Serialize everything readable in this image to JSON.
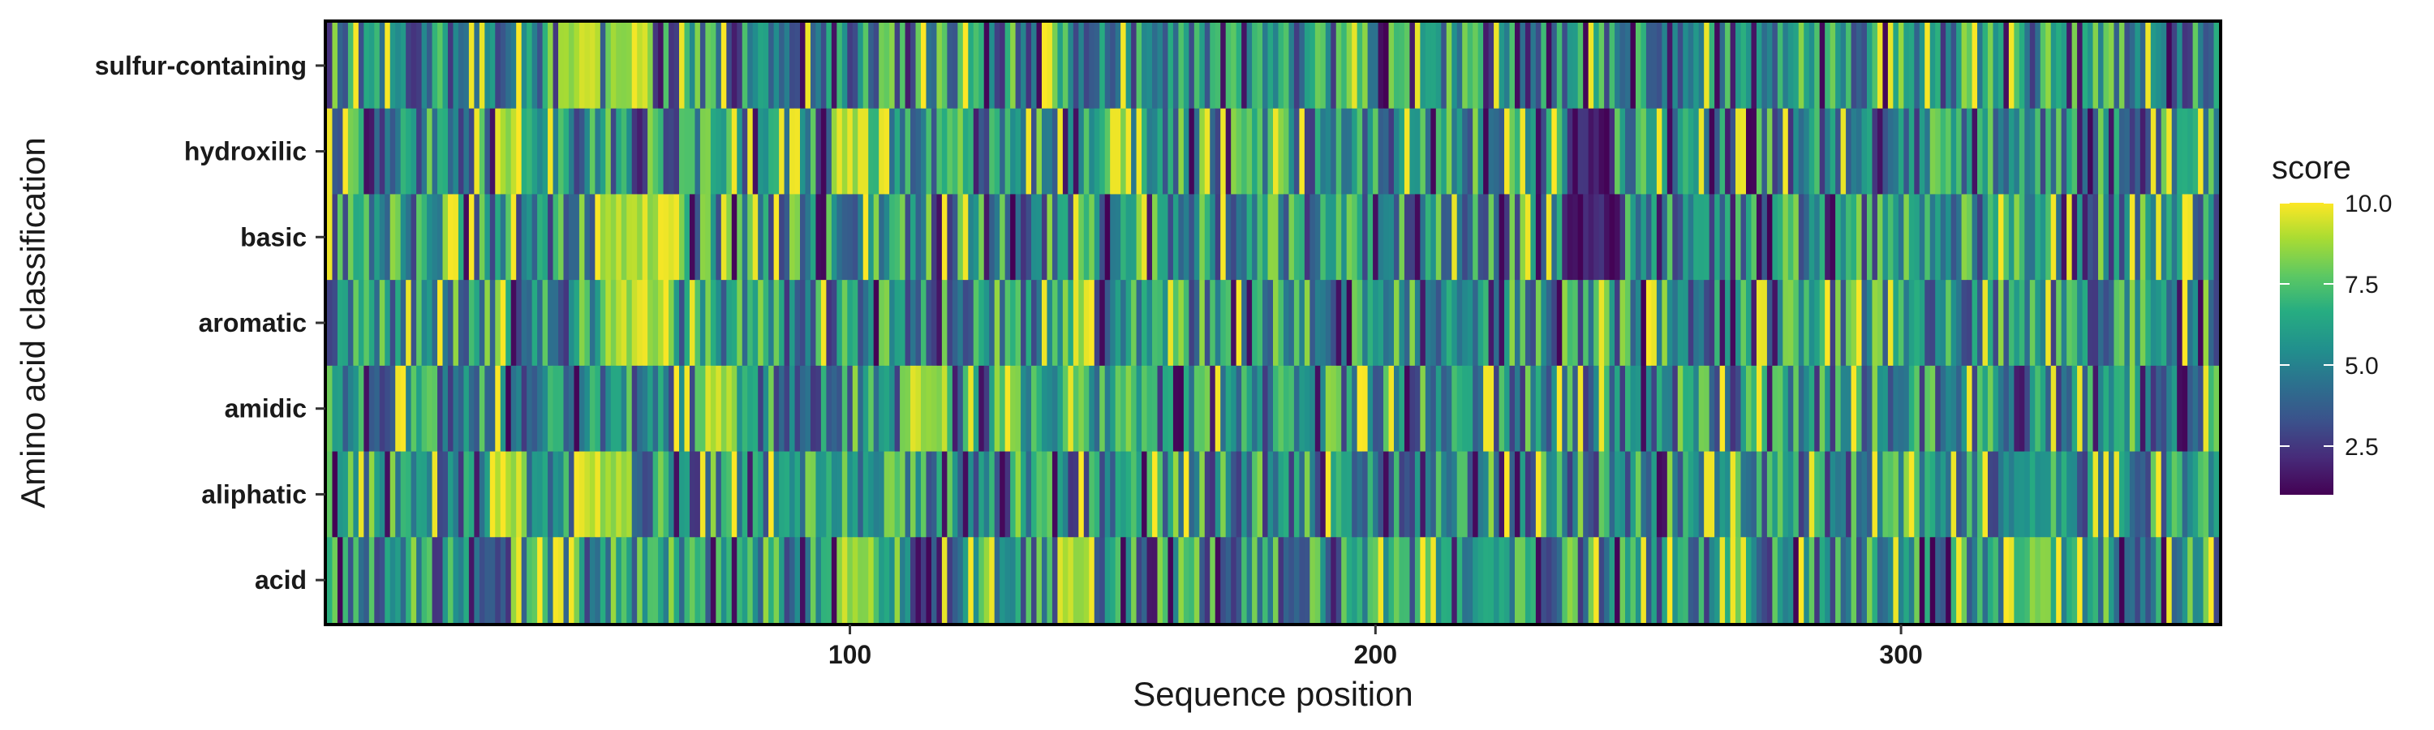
{
  "chart_data": {
    "type": "heatmap",
    "title": "",
    "xlabel": "Sequence position",
    "ylabel": "Amino acid classification",
    "rows": [
      "sulfur-containing",
      "hydroxilic",
      "basic",
      "aromatic",
      "amidic",
      "aliphatic",
      "acid"
    ],
    "xlim": [
      1,
      360
    ],
    "x_ticks": [
      100,
      200,
      300
    ],
    "x_tick_labels": [
      "100",
      "200",
      "300"
    ],
    "grid": false,
    "colorscale": "viridis",
    "colors": [
      "#440154",
      "#3b528b",
      "#21908c",
      "#5dc963",
      "#fde725"
    ],
    "legend": {
      "title": "score",
      "position": "right",
      "range": [
        1.0,
        10.0
      ],
      "ticks": [
        2.5,
        5.0,
        7.5,
        10.0
      ],
      "tick_labels": [
        "2.5",
        "5.0",
        "7.5",
        "10.0"
      ]
    },
    "values_note_free": true,
    "profiles": [
      {
        "row": "sulfur-containing",
        "seed": 11,
        "hot_spans": [
          [
            45,
            52
          ],
          [
            55,
            62
          ]
        ],
        "cold_spans": []
      },
      {
        "row": "hydroxilic",
        "seed": 23,
        "hot_spans": [
          [
            33,
            36
          ],
          [
            97,
            100
          ]
        ],
        "cold_spans": [
          [
            237,
            245
          ]
        ]
      },
      {
        "row": "basic",
        "seed": 37,
        "hot_spans": [
          [
            53,
            68
          ]
        ],
        "cold_spans": [
          [
            236,
            246
          ]
        ]
      },
      {
        "row": "aromatic",
        "seed": 41,
        "hot_spans": [
          [
            54,
            66
          ]
        ],
        "cold_spans": []
      },
      {
        "row": "amidic",
        "seed": 53,
        "hot_spans": [
          [
            73,
            78
          ],
          [
            112,
            118
          ]
        ],
        "cold_spans": []
      },
      {
        "row": "aliphatic",
        "seed": 67,
        "hot_spans": [
          [
            32,
            38
          ],
          [
            49,
            58
          ]
        ],
        "cold_spans": []
      },
      {
        "row": "acid",
        "seed": 79,
        "hot_spans": [
          [
            98,
            104
          ],
          [
            140,
            146
          ]
        ],
        "cold_spans": []
      }
    ]
  }
}
